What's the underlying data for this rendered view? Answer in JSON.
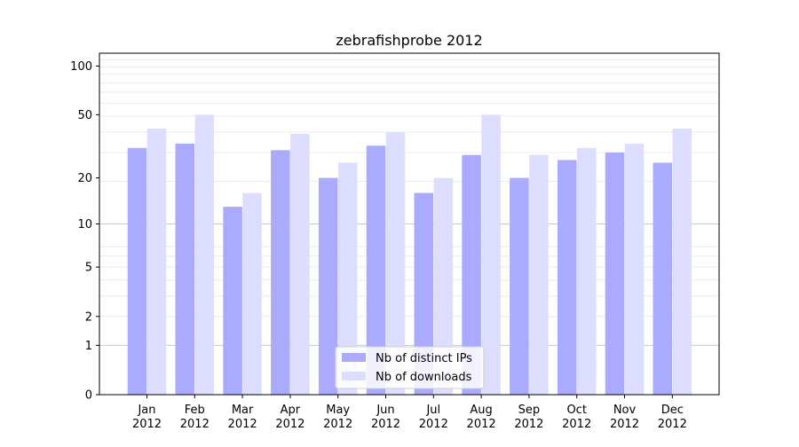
{
  "chart_data": {
    "type": "bar",
    "title": "zebrafishprobe 2012",
    "xlabel": "",
    "ylabel": "",
    "yscale": "log(1 + y)",
    "ylim": [
      0,
      120
    ],
    "yticks": [
      0,
      1,
      2,
      5,
      10,
      20,
      50,
      100
    ],
    "grid": "horizontal",
    "legend_position": "bottom-center",
    "categories": [
      "Jan\n2012",
      "Feb\n2012",
      "Mar\n2012",
      "Apr\n2012",
      "May\n2012",
      "Jun\n2012",
      "Jul\n2012",
      "Aug\n2012",
      "Sep\n2012",
      "Oct\n2012",
      "Nov\n2012",
      "Dec\n2012"
    ],
    "series": [
      {
        "name": "Nb of distinct IPs",
        "color": "#aaaaff",
        "values": [
          31,
          33,
          13,
          30,
          20,
          32,
          16,
          28,
          20,
          26,
          29,
          25
        ]
      },
      {
        "name": "Nb of downloads",
        "color": "#ddddff",
        "values": [
          41,
          50,
          16,
          38,
          25,
          39,
          20,
          50,
          28,
          31,
          33,
          41
        ]
      }
    ]
  }
}
